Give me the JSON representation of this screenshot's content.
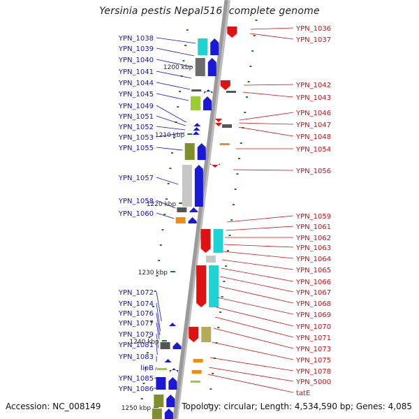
{
  "title": "Yersinia pestis Nepal516, complete genome",
  "accession": "Accession: NC_008149",
  "topology": "Topology: circular; Length: 4,534,590 bp; Genes: 4,085",
  "colors": {
    "left_label": "#1010cc",
    "right_label": "#cc1111",
    "backbone": "#9a9a9a",
    "kbp_tick": "#1b7a1b"
  },
  "kbp_ticks": [
    "1200 kbp",
    "1210 kbp",
    "1220 kbp",
    "1230 kbp",
    "1240 kbp",
    "1250 kbp"
  ],
  "left_genes": [
    "YPN_1038",
    "YPN_1039",
    "YPN_1040",
    "YPN_1041",
    "YPN_1044",
    "YPN_1045",
    "YPN_1049",
    "YPN_1051",
    "YPN_1052",
    "YPN_1053",
    "YPN_1055",
    "YPN_1057",
    "YPN_1058",
    "YPN_1060",
    "YPN_1072",
    "YPN_1074",
    "YPN_1076",
    "YPN_1077",
    "YPN_1079",
    "YPN_1081",
    "YPN_1083",
    "lipB",
    "YPN_1085",
    "YPN_1086"
  ],
  "right_genes": [
    "YPN_1036",
    "YPN_1037",
    "YPN_1042",
    "YPN_1043",
    "YPN_1046",
    "YPN_1047",
    "YPN_1048",
    "YPN_1054",
    "YPN_1056",
    "YPN_1059",
    "YPN_1061",
    "YPN_1062",
    "YPN_1063",
    "YPN_1064",
    "YPN_1065",
    "YPN_1066",
    "YPN_1067",
    "YPN_1068",
    "YPN_1069",
    "YPN_1070",
    "YPN_1071",
    "YPN_1073",
    "YPN_1075",
    "YPN_1078",
    "YPN_5000",
    "tatE"
  ]
}
